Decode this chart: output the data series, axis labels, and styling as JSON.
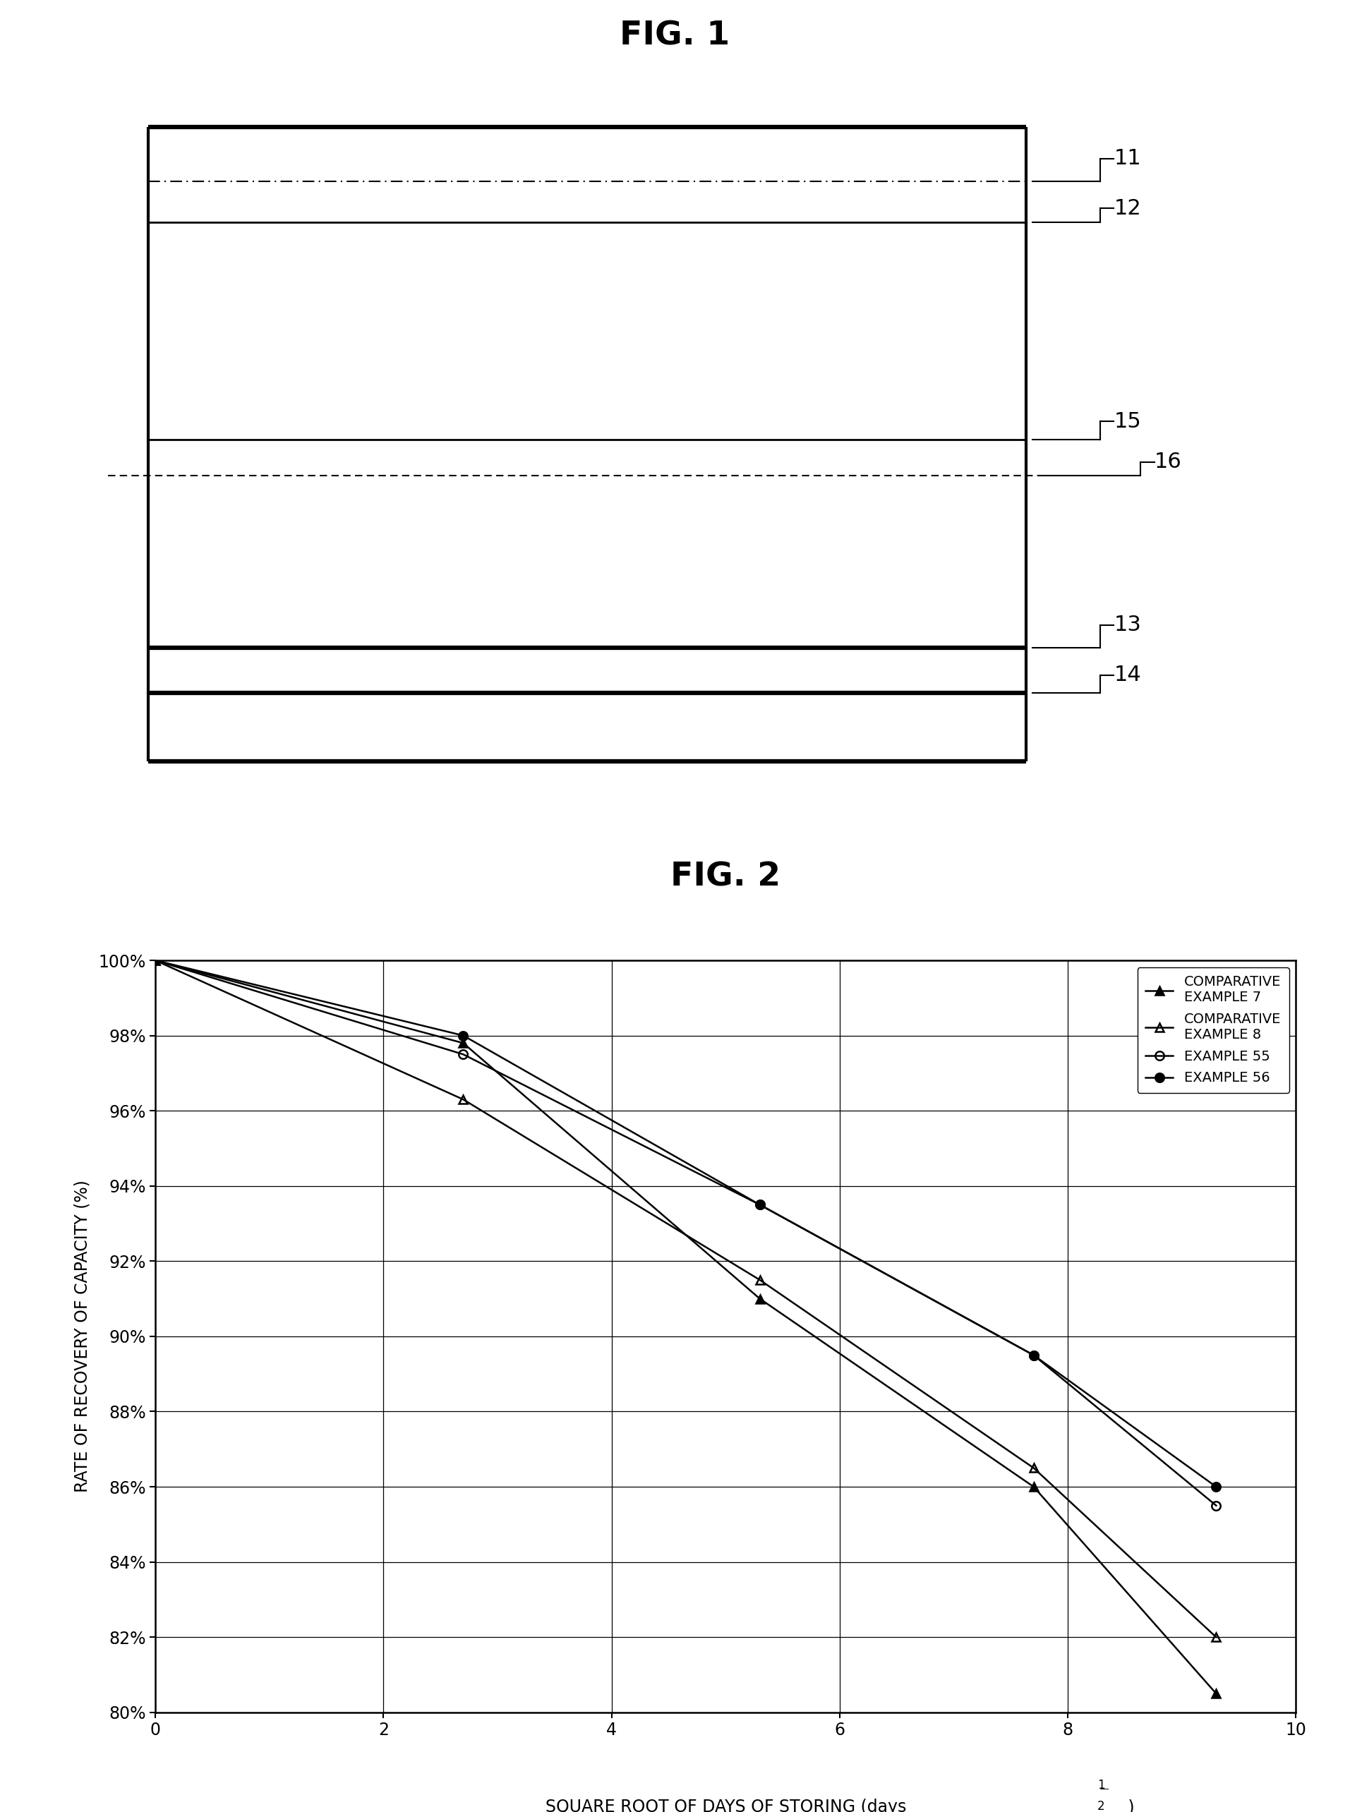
{
  "fig1_title": "FIG. 1",
  "fig2_title": "FIG. 2",
  "series": [
    {
      "label": "COMPARATIVE\nEXAMPLE 7",
      "x": [
        0,
        2.7,
        5.3,
        7.7,
        9.3
      ],
      "y": [
        100,
        97.8,
        91.0,
        86.0,
        80.5
      ],
      "marker": "^",
      "fillstyle": "full",
      "markersize": 9,
      "linewidth": 1.8
    },
    {
      "label": "COMPARATIVE\nEXAMPLE 8",
      "x": [
        0,
        2.7,
        5.3,
        7.7,
        9.3
      ],
      "y": [
        100,
        96.3,
        91.5,
        86.5,
        82.0
      ],
      "marker": "^",
      "fillstyle": "none",
      "markersize": 9,
      "linewidth": 1.8
    },
    {
      "label": "EXAMPLE 55",
      "x": [
        0,
        2.7,
        5.3,
        7.7,
        9.3
      ],
      "y": [
        100,
        97.5,
        93.5,
        89.5,
        85.5
      ],
      "marker": "o",
      "fillstyle": "none",
      "markersize": 9,
      "linewidth": 1.8
    },
    {
      "label": "EXAMPLE 56",
      "x": [
        0,
        2.7,
        5.3,
        7.7,
        9.3
      ],
      "y": [
        100,
        98.0,
        93.5,
        89.5,
        86.0
      ],
      "marker": "o",
      "fillstyle": "full",
      "markersize": 9,
      "linewidth": 1.8
    }
  ],
  "xlim": [
    0,
    10
  ],
  "ylim": [
    80,
    100
  ],
  "xticks": [
    0,
    2,
    4,
    6,
    8,
    10
  ],
  "yticks": [
    80,
    82,
    84,
    86,
    88,
    90,
    92,
    94,
    96,
    98,
    100
  ],
  "ylabel": "RATE OF RECOVERY OF CAPACITY (%)",
  "xlabel_main": "SQUARE ROOT OF DAYS OF STORING (days",
  "xlabel_sup": "1",
  "xlabel_sub": "2",
  "xlabel_end": " )"
}
